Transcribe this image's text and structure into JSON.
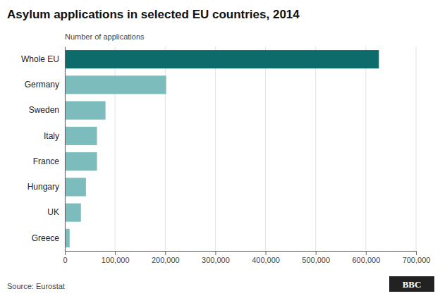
{
  "chart_data": {
    "type": "bar",
    "orientation": "horizontal",
    "title": "Asylum applications in selected EU countries, 2014",
    "xlabel": "Number of applications",
    "annotations": [
      "Source: Eurostat",
      "BBC"
    ],
    "categories": [
      "Whole EU",
      "Germany",
      "Sweden",
      "Italy",
      "France",
      "Hungary",
      "UK",
      "Greece"
    ],
    "values": [
      626000,
      202000,
      81000,
      64000,
      64000,
      42000,
      32000,
      9500
    ],
    "colors": [
      "#0d6b6b",
      "#7dbcbc",
      "#7dbcbc",
      "#7dbcbc",
      "#7dbcbc",
      "#7dbcbc",
      "#7dbcbc",
      "#7dbcbc"
    ],
    "xlim": [
      0,
      700000
    ],
    "xticks": [
      0,
      {
        "value": 100000,
        "label": "100,000"
      },
      {
        "value": 200000,
        "label": "200,000"
      },
      {
        "value": 300000,
        "label": "300,000"
      },
      {
        "value": 400000,
        "label": "400,000"
      },
      {
        "value": 500000,
        "label": "500,000"
      },
      {
        "value": 600000,
        "label": "600,000"
      },
      {
        "value": 700000,
        "label": "700,000"
      }
    ],
    "grid": true
  }
}
